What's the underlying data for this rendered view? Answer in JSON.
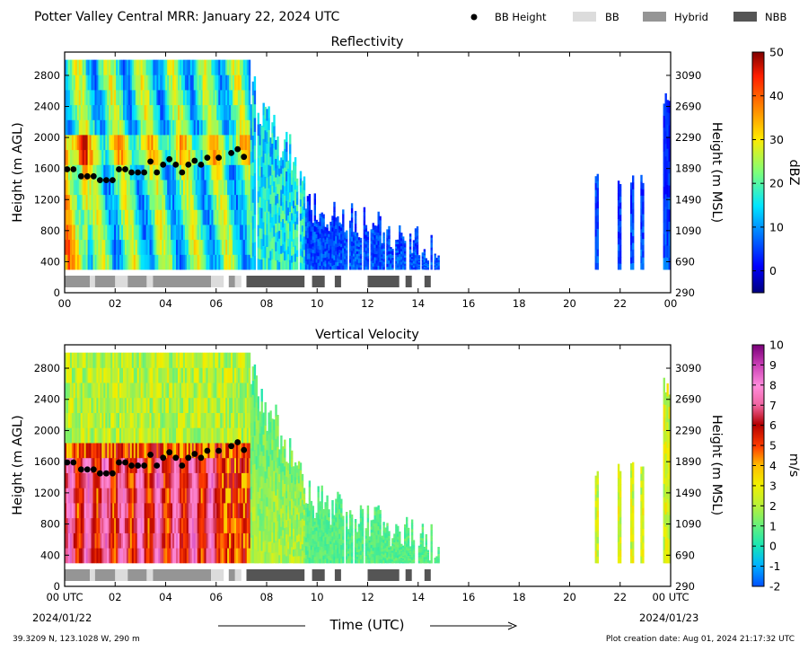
{
  "figure": {
    "title": "Potter Valley Central MRR:  January 22, 2024 UTC",
    "footer_left": "39.3209 N, 123.1028 W, 290 m",
    "footer_right": "Plot creation date: Aug 01, 2024 21:17:32 UTC",
    "xlabel": "Time (UTC)",
    "date_start": "2024/01/22",
    "date_end": "2024/01/23",
    "legend": [
      {
        "label": "BB Height",
        "marker": "dot",
        "color": "#000000"
      },
      {
        "label": "BB",
        "marker": "box",
        "color": "#dcdcdc"
      },
      {
        "label": "Hybrid",
        "marker": "box",
        "color": "#959595"
      },
      {
        "label": "NBB",
        "marker": "box",
        "color": "#555555"
      }
    ]
  },
  "chart_data": [
    {
      "type": "heatmap",
      "title": "Reflectivity",
      "ylabel": "Height (m AGL)",
      "y2label": "Height (m MSL)",
      "xlim": [
        0,
        24
      ],
      "ylim": [
        0,
        3100
      ],
      "x_ticks": [
        "00",
        "02",
        "04",
        "06",
        "08",
        "10",
        "12",
        "14",
        "16",
        "18",
        "20",
        "22",
        "00"
      ],
      "y_ticks": [
        "0",
        "400",
        "800",
        "1200",
        "1600",
        "2000",
        "2400",
        "2800"
      ],
      "y2_ticks": [
        "290",
        "690",
        "1090",
        "1490",
        "1890",
        "2290",
        "2690",
        "3090"
      ],
      "colorbar": {
        "label": "dBZ",
        "range": [
          -5,
          50
        ],
        "ticks": [
          "0",
          "10",
          "20",
          "30",
          "40",
          "50"
        ]
      },
      "data_coverage_hours": [
        [
          0,
          14.8
        ],
        [
          21.0,
          21.1
        ],
        [
          21.9,
          22.0
        ],
        [
          22.4,
          22.5
        ],
        [
          22.8,
          22.9
        ],
        [
          23.7,
          24
        ]
      ],
      "bb_height": {
        "x": [
          0.1,
          0.35,
          0.65,
          0.9,
          1.15,
          1.4,
          1.65,
          1.9,
          2.15,
          2.4,
          2.65,
          2.9,
          3.15,
          3.4,
          3.65,
          3.9,
          4.15,
          4.4,
          4.65,
          4.9,
          5.15,
          5.4,
          5.65,
          6.1,
          6.6,
          6.85,
          7.1
        ],
        "y": [
          1590,
          1590,
          1500,
          1500,
          1500,
          1450,
          1450,
          1450,
          1590,
          1590,
          1550,
          1550,
          1550,
          1690,
          1550,
          1650,
          1720,
          1650,
          1550,
          1650,
          1700,
          1650,
          1740,
          1740,
          1800,
          1850,
          1750
        ]
      },
      "bb_type_strip": [
        {
          "type": "Hybrid",
          "start": 0.0,
          "end": 1.0
        },
        {
          "type": "BB",
          "start": 1.0,
          "end": 1.2
        },
        {
          "type": "Hybrid",
          "start": 1.2,
          "end": 2.0
        },
        {
          "type": "BB",
          "start": 2.0,
          "end": 2.5
        },
        {
          "type": "Hybrid",
          "start": 2.5,
          "end": 3.25
        },
        {
          "type": "BB",
          "start": 3.25,
          "end": 3.5
        },
        {
          "type": "Hybrid",
          "start": 3.5,
          "end": 5.8
        },
        {
          "type": "BB",
          "start": 5.8,
          "end": 6.3
        },
        {
          "type": "Hybrid",
          "start": 6.5,
          "end": 6.75
        },
        {
          "type": "BB",
          "start": 6.75,
          "end": 7.0
        },
        {
          "type": "NBB",
          "start": 7.2,
          "end": 9.5
        },
        {
          "type": "NBB",
          "start": 9.8,
          "end": 10.3
        },
        {
          "type": "NBB",
          "start": 10.7,
          "end": 10.95
        },
        {
          "type": "NBB",
          "start": 12.0,
          "end": 13.25
        },
        {
          "type": "NBB",
          "start": 13.5,
          "end": 13.75
        },
        {
          "type": "NBB",
          "start": 14.25,
          "end": 14.5
        }
      ]
    },
    {
      "type": "heatmap",
      "title": "Vertical Velocity",
      "ylabel": "Height (m AGL)",
      "y2label": "Height (m MSL)",
      "xlim": [
        0,
        24
      ],
      "ylim": [
        0,
        3100
      ],
      "x_ticks": [
        "00 UTC",
        "02",
        "04",
        "06",
        "08",
        "10",
        "12",
        "14",
        "16",
        "18",
        "20",
        "22",
        "00 UTC"
      ],
      "y_ticks": [
        "0",
        "400",
        "800",
        "1200",
        "1600",
        "2000",
        "2400",
        "2800"
      ],
      "y2_ticks": [
        "290",
        "690",
        "1090",
        "1490",
        "1890",
        "2290",
        "2690",
        "3090"
      ],
      "colorbar": {
        "label": "m/s",
        "range": [
          -2,
          10
        ],
        "ticks": [
          "-2",
          "-1",
          "0",
          "1",
          "2",
          "3",
          "4",
          "5",
          "6",
          "7",
          "8",
          "9",
          "10"
        ]
      },
      "data_coverage_hours": [
        [
          0,
          14.8
        ],
        [
          21.0,
          21.1
        ],
        [
          21.9,
          22.0
        ],
        [
          22.4,
          22.5
        ],
        [
          22.8,
          22.9
        ],
        [
          23.7,
          24
        ]
      ],
      "bb_height": {
        "x": [
          0.1,
          0.35,
          0.65,
          0.9,
          1.15,
          1.4,
          1.65,
          1.9,
          2.15,
          2.4,
          2.65,
          2.9,
          3.15,
          3.4,
          3.65,
          3.9,
          4.15,
          4.4,
          4.65,
          4.9,
          5.15,
          5.4,
          5.65,
          6.1,
          6.6,
          6.85,
          7.1
        ],
        "y": [
          1590,
          1590,
          1500,
          1500,
          1500,
          1450,
          1450,
          1450,
          1590,
          1590,
          1550,
          1550,
          1550,
          1690,
          1550,
          1650,
          1720,
          1650,
          1550,
          1650,
          1700,
          1650,
          1740,
          1740,
          1800,
          1850,
          1750
        ]
      },
      "bb_type_strip": [
        {
          "type": "Hybrid",
          "start": 0.0,
          "end": 1.0
        },
        {
          "type": "BB",
          "start": 1.0,
          "end": 1.2
        },
        {
          "type": "Hybrid",
          "start": 1.2,
          "end": 2.0
        },
        {
          "type": "BB",
          "start": 2.0,
          "end": 2.5
        },
        {
          "type": "Hybrid",
          "start": 2.5,
          "end": 3.25
        },
        {
          "type": "BB",
          "start": 3.25,
          "end": 3.5
        },
        {
          "type": "Hybrid",
          "start": 3.5,
          "end": 5.8
        },
        {
          "type": "BB",
          "start": 5.8,
          "end": 6.3
        },
        {
          "type": "Hybrid",
          "start": 6.5,
          "end": 6.75
        },
        {
          "type": "BB",
          "start": 6.75,
          "end": 7.0
        },
        {
          "type": "NBB",
          "start": 7.2,
          "end": 9.5
        },
        {
          "type": "NBB",
          "start": 9.8,
          "end": 10.3
        },
        {
          "type": "NBB",
          "start": 10.7,
          "end": 10.95
        },
        {
          "type": "NBB",
          "start": 12.0,
          "end": 13.25
        },
        {
          "type": "NBB",
          "start": 13.5,
          "end": 13.75
        },
        {
          "type": "NBB",
          "start": 14.25,
          "end": 14.5
        }
      ]
    }
  ]
}
